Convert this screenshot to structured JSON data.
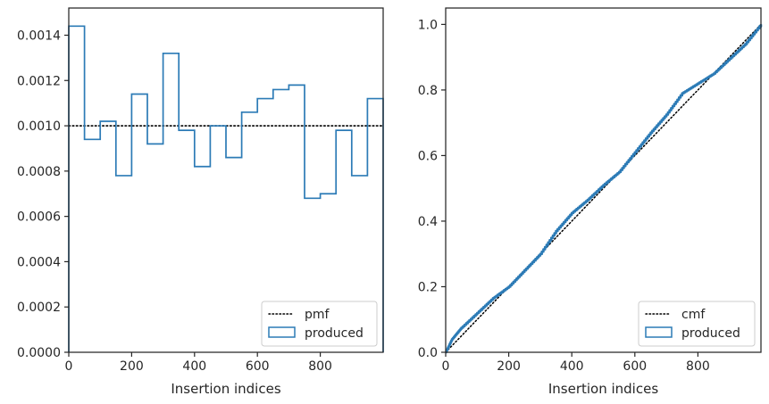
{
  "colors": {
    "produced": "#2c7bb6",
    "reference": "#000000",
    "axes": "#262626"
  },
  "chart_data": [
    {
      "type": "histogram",
      "xlabel": "Insertion indices",
      "ylabel": "",
      "xlim": [
        0,
        1000
      ],
      "ylim": [
        0,
        0.00152
      ],
      "xticks": [
        0,
        200,
        400,
        600,
        800
      ],
      "xtick_labels": [
        "0",
        "200",
        "400",
        "600",
        "800"
      ],
      "yticks": [
        0,
        0.0002,
        0.0004,
        0.0006,
        0.0008,
        0.001,
        0.0012,
        0.0014
      ],
      "ytick_labels": [
        "0.0000",
        "0.0002",
        "0.0004",
        "0.0006",
        "0.0008",
        "0.0010",
        "0.0012",
        "0.0014"
      ],
      "legend_position": "lower-right",
      "legend": [
        {
          "label": "pmf",
          "style": "dotted-line"
        },
        {
          "label": "produced",
          "style": "step-box"
        }
      ],
      "reference_value": 0.001,
      "bin_edges": [
        0,
        50,
        100,
        150,
        200,
        250,
        300,
        350,
        400,
        450,
        500,
        550,
        600,
        650,
        700,
        750,
        800,
        850,
        900,
        950,
        1000
      ],
      "values": [
        0.00144,
        0.00094,
        0.00102,
        0.00078,
        0.00114,
        0.00092,
        0.00132,
        0.00098,
        0.00082,
        0.001,
        0.00086,
        0.00106,
        0.00112,
        0.00116,
        0.00118,
        0.00068,
        0.0007,
        0.00098,
        0.00078,
        0.00112
      ]
    },
    {
      "type": "line",
      "xlabel": "Insertion indices",
      "ylabel": "",
      "xlim": [
        0,
        1000
      ],
      "ylim": [
        0,
        1.05
      ],
      "xticks": [
        0,
        200,
        400,
        600,
        800
      ],
      "xtick_labels": [
        "0",
        "200",
        "400",
        "600",
        "800"
      ],
      "yticks": [
        0,
        0.2,
        0.4,
        0.6,
        0.8,
        1.0
      ],
      "ytick_labels": [
        "0.0",
        "0.2",
        "0.4",
        "0.6",
        "0.8",
        "1.0"
      ],
      "legend_position": "lower-right",
      "legend": [
        {
          "label": "cmf",
          "style": "dotted-line"
        },
        {
          "label": "produced",
          "style": "step-box"
        }
      ],
      "series": [
        {
          "name": "cmf",
          "x": [
            0,
            1000
          ],
          "y": [
            0,
            1.0
          ]
        },
        {
          "name": "produced",
          "x": [
            0,
            20,
            50,
            100,
            150,
            200,
            250,
            300,
            350,
            400,
            450,
            500,
            550,
            600,
            650,
            700,
            750,
            800,
            850,
            900,
            950,
            1000
          ],
          "y": [
            0,
            0.04,
            0.075,
            0.12,
            0.165,
            0.2,
            0.25,
            0.3,
            0.37,
            0.425,
            0.465,
            0.51,
            0.55,
            0.61,
            0.67,
            0.725,
            0.79,
            0.82,
            0.85,
            0.895,
            0.94,
            1.0
          ]
        }
      ]
    }
  ]
}
